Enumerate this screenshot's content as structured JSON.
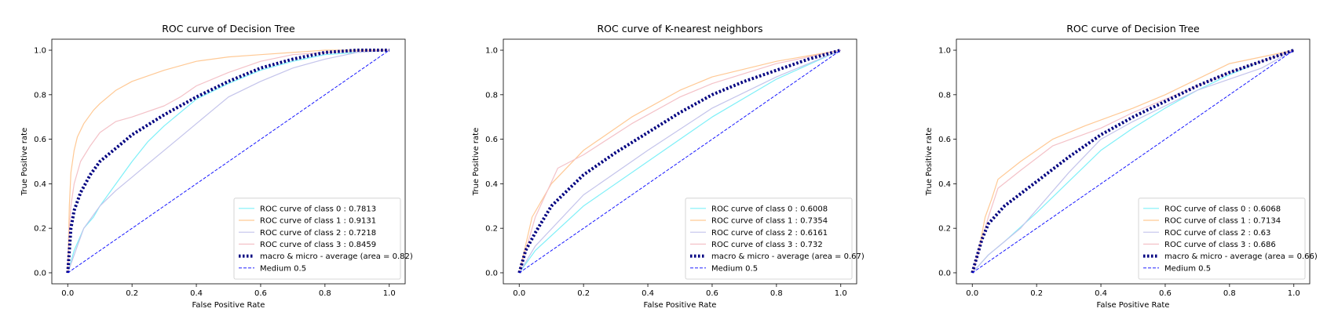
{
  "chart_data": [
    {
      "type": "line",
      "title": "ROC curve of Decision Tree",
      "xlabel": "False Positive Rate",
      "ylabel": "True Positive rate",
      "xlim": [
        0,
        1
      ],
      "ylim": [
        0,
        1
      ],
      "xticks": [
        "0.0",
        "0.2",
        "0.4",
        "0.6",
        "0.8",
        "1.0"
      ],
      "yticks": [
        "0.0",
        "0.2",
        "0.4",
        "0.6",
        "0.8",
        "1.0"
      ],
      "legend_position": "lower-right",
      "series": [
        {
          "name": "ROC curve of class 0 : 0.7813",
          "color": "#7ff0f8",
          "style": "solid",
          "points": [
            [
              0,
              0
            ],
            [
              0.02,
              0.1
            ],
            [
              0.05,
              0.2
            ],
            [
              0.08,
              0.25
            ],
            [
              0.1,
              0.3
            ],
            [
              0.15,
              0.4
            ],
            [
              0.2,
              0.5
            ],
            [
              0.25,
              0.59
            ],
            [
              0.3,
              0.66
            ],
            [
              0.35,
              0.72
            ],
            [
              0.4,
              0.78
            ],
            [
              0.5,
              0.85
            ],
            [
              0.6,
              0.91
            ],
            [
              0.7,
              0.95
            ],
            [
              0.8,
              0.98
            ],
            [
              0.9,
              0.99
            ],
            [
              1,
              1
            ]
          ]
        },
        {
          "name": "ROC curve of class 1 : 0.9131",
          "color": "#ffc995",
          "style": "solid",
          "points": [
            [
              0,
              0
            ],
            [
              0.005,
              0.3
            ],
            [
              0.01,
              0.45
            ],
            [
              0.02,
              0.55
            ],
            [
              0.03,
              0.61
            ],
            [
              0.05,
              0.67
            ],
            [
              0.08,
              0.73
            ],
            [
              0.1,
              0.76
            ],
            [
              0.15,
              0.82
            ],
            [
              0.2,
              0.86
            ],
            [
              0.3,
              0.91
            ],
            [
              0.4,
              0.95
            ],
            [
              0.5,
              0.97
            ],
            [
              0.6,
              0.98
            ],
            [
              0.7,
              0.99
            ],
            [
              0.8,
              1.0
            ],
            [
              1,
              1
            ]
          ]
        },
        {
          "name": "ROC curve of class 2 : 0.7218",
          "color": "#c4c4eb",
          "style": "solid",
          "points": [
            [
              0,
              0
            ],
            [
              0.03,
              0.12
            ],
            [
              0.05,
              0.2
            ],
            [
              0.1,
              0.3
            ],
            [
              0.15,
              0.37
            ],
            [
              0.2,
              0.43
            ],
            [
              0.25,
              0.49
            ],
            [
              0.3,
              0.55
            ],
            [
              0.35,
              0.61
            ],
            [
              0.4,
              0.67
            ],
            [
              0.45,
              0.73
            ],
            [
              0.5,
              0.79
            ],
            [
              0.6,
              0.86
            ],
            [
              0.7,
              0.92
            ],
            [
              0.8,
              0.96
            ],
            [
              0.9,
              0.99
            ],
            [
              1,
              1
            ]
          ]
        },
        {
          "name": "ROC curve of class 3 : 0.8459",
          "color": "#f4c2c8",
          "style": "solid",
          "points": [
            [
              0,
              0
            ],
            [
              0.005,
              0.2
            ],
            [
              0.01,
              0.3
            ],
            [
              0.02,
              0.4
            ],
            [
              0.04,
              0.5
            ],
            [
              0.07,
              0.57
            ],
            [
              0.1,
              0.63
            ],
            [
              0.15,
              0.68
            ],
            [
              0.2,
              0.7
            ],
            [
              0.3,
              0.75
            ],
            [
              0.35,
              0.79
            ],
            [
              0.4,
              0.84
            ],
            [
              0.5,
              0.9
            ],
            [
              0.6,
              0.95
            ],
            [
              0.7,
              0.98
            ],
            [
              0.8,
              0.99
            ],
            [
              1,
              1
            ]
          ]
        },
        {
          "name": "macro & micro - average (area = 0.82)",
          "color": "#000080",
          "style": "dotted",
          "points": [
            [
              0,
              0
            ],
            [
              0.005,
              0.1
            ],
            [
              0.01,
              0.2
            ],
            [
              0.02,
              0.28
            ],
            [
              0.04,
              0.36
            ],
            [
              0.07,
              0.44
            ],
            [
              0.1,
              0.5
            ],
            [
              0.15,
              0.56
            ],
            [
              0.2,
              0.62
            ],
            [
              0.3,
              0.71
            ],
            [
              0.4,
              0.79
            ],
            [
              0.5,
              0.86
            ],
            [
              0.6,
              0.92
            ],
            [
              0.7,
              0.96
            ],
            [
              0.8,
              0.99
            ],
            [
              0.9,
              1.0
            ],
            [
              1,
              1
            ]
          ]
        },
        {
          "name": "Medium 0.5",
          "color": "#0000ff",
          "style": "dashed",
          "points": [
            [
              0,
              0
            ],
            [
              1,
              1
            ]
          ]
        }
      ]
    },
    {
      "type": "line",
      "title": "ROC curve of K-nearest neighbors",
      "xlabel": "False Positive Rate",
      "ylabel": "True Positive rate",
      "xlim": [
        0,
        1
      ],
      "ylim": [
        0,
        1
      ],
      "xticks": [
        "0.0",
        "0.2",
        "0.4",
        "0.6",
        "0.8",
        "1.0"
      ],
      "yticks": [
        "0.0",
        "0.2",
        "0.4",
        "0.6",
        "0.8",
        "1.0"
      ],
      "legend_position": "lower-right",
      "series": [
        {
          "name": "ROC curve of class 0 : 0.6008",
          "color": "#7ff0f8",
          "style": "solid",
          "points": [
            [
              0,
              0
            ],
            [
              0.05,
              0.1
            ],
            [
              0.2,
              0.3
            ],
            [
              0.4,
              0.5
            ],
            [
              0.6,
              0.7
            ],
            [
              0.8,
              0.87
            ],
            [
              1,
              1
            ]
          ]
        },
        {
          "name": "ROC curve of class 1 : 0.7354",
          "color": "#ffc995",
          "style": "solid",
          "points": [
            [
              0,
              0
            ],
            [
              0.04,
              0.25
            ],
            [
              0.1,
              0.4
            ],
            [
              0.2,
              0.55
            ],
            [
              0.35,
              0.7
            ],
            [
              0.5,
              0.82
            ],
            [
              0.6,
              0.88
            ],
            [
              0.8,
              0.95
            ],
            [
              1,
              1
            ]
          ]
        },
        {
          "name": "ROC curve of class 2 : 0.6161",
          "color": "#c4c4eb",
          "style": "solid",
          "points": [
            [
              0,
              0
            ],
            [
              0.05,
              0.12
            ],
            [
              0.2,
              0.35
            ],
            [
              0.4,
              0.55
            ],
            [
              0.6,
              0.74
            ],
            [
              0.8,
              0.88
            ],
            [
              1,
              1
            ]
          ]
        },
        {
          "name": "ROC curve of class 3 : 0.732",
          "color": "#f4c2c8",
          "style": "solid",
          "points": [
            [
              0,
              0
            ],
            [
              0.05,
              0.25
            ],
            [
              0.12,
              0.47
            ],
            [
              0.2,
              0.53
            ],
            [
              0.35,
              0.67
            ],
            [
              0.5,
              0.79
            ],
            [
              0.6,
              0.85
            ],
            [
              0.8,
              0.94
            ],
            [
              1,
              1
            ]
          ]
        },
        {
          "name": "macro & micro - average (area = 0.67)",
          "color": "#000080",
          "style": "dotted",
          "points": [
            [
              0,
              0
            ],
            [
              0.02,
              0.1
            ],
            [
              0.05,
              0.18
            ],
            [
              0.1,
              0.3
            ],
            [
              0.2,
              0.44
            ],
            [
              0.3,
              0.54
            ],
            [
              0.4,
              0.63
            ],
            [
              0.5,
              0.72
            ],
            [
              0.6,
              0.8
            ],
            [
              0.7,
              0.86
            ],
            [
              0.8,
              0.91
            ],
            [
              0.9,
              0.96
            ],
            [
              1,
              1
            ]
          ]
        },
        {
          "name": "Medium 0.5",
          "color": "#0000ff",
          "style": "dashed",
          "points": [
            [
              0,
              0
            ],
            [
              1,
              1
            ]
          ]
        }
      ]
    },
    {
      "type": "line",
      "title": "ROC curve of Decision Tree",
      "xlabel": "False Positive Rate",
      "ylabel": "True Positive rate",
      "xlim": [
        0,
        1
      ],
      "ylim": [
        0,
        1
      ],
      "xticks": [
        "0.0",
        "0.2",
        "0.4",
        "0.6",
        "0.8",
        "1.0"
      ],
      "yticks": [
        "0.0",
        "0.2",
        "0.4",
        "0.6",
        "0.8",
        "1.0"
      ],
      "legend_position": "lower-right",
      "series": [
        {
          "name": "ROC curve of class 0 : 0.6068",
          "color": "#7ff0f8",
          "style": "solid",
          "points": [
            [
              0,
              0
            ],
            [
              0.05,
              0.08
            ],
            [
              0.1,
              0.14
            ],
            [
              0.2,
              0.27
            ],
            [
              0.3,
              0.41
            ],
            [
              0.4,
              0.55
            ],
            [
              0.5,
              0.65
            ],
            [
              0.6,
              0.74
            ],
            [
              0.7,
              0.82
            ],
            [
              0.8,
              0.89
            ],
            [
              0.9,
              0.95
            ],
            [
              1,
              1
            ]
          ]
        },
        {
          "name": "ROC curve of class 1 : 0.7134",
          "color": "#ffc995",
          "style": "solid",
          "points": [
            [
              0,
              0
            ],
            [
              0.02,
              0.1
            ],
            [
              0.04,
              0.25
            ],
            [
              0.06,
              0.33
            ],
            [
              0.08,
              0.42
            ],
            [
              0.15,
              0.5
            ],
            [
              0.25,
              0.6
            ],
            [
              0.35,
              0.66
            ],
            [
              0.5,
              0.74
            ],
            [
              0.6,
              0.8
            ],
            [
              0.7,
              0.87
            ],
            [
              0.8,
              0.94
            ],
            [
              0.9,
              0.97
            ],
            [
              1,
              1
            ]
          ]
        },
        {
          "name": "ROC curve of class 2 : 0.63",
          "color": "#c4c4eb",
          "style": "solid",
          "points": [
            [
              0,
              0
            ],
            [
              0.05,
              0.08
            ],
            [
              0.15,
              0.2
            ],
            [
              0.3,
              0.45
            ],
            [
              0.4,
              0.6
            ],
            [
              0.5,
              0.68
            ],
            [
              0.6,
              0.75
            ],
            [
              0.7,
              0.82
            ],
            [
              0.8,
              0.87
            ],
            [
              0.9,
              0.92
            ],
            [
              1,
              1
            ]
          ]
        },
        {
          "name": "ROC curve of class 3 : 0.686",
          "color": "#f4c2c8",
          "style": "solid",
          "points": [
            [
              0,
              0
            ],
            [
              0.02,
              0.1
            ],
            [
              0.05,
              0.25
            ],
            [
              0.08,
              0.38
            ],
            [
              0.15,
              0.46
            ],
            [
              0.25,
              0.57
            ],
            [
              0.4,
              0.65
            ],
            [
              0.5,
              0.72
            ],
            [
              0.6,
              0.78
            ],
            [
              0.7,
              0.84
            ],
            [
              0.8,
              0.9
            ],
            [
              0.9,
              0.95
            ],
            [
              1,
              1
            ]
          ]
        },
        {
          "name": "macro & micro - average (area = 0.66)",
          "color": "#000080",
          "style": "dotted",
          "points": [
            [
              0,
              0
            ],
            [
              0.01,
              0.05
            ],
            [
              0.03,
              0.15
            ],
            [
              0.05,
              0.22
            ],
            [
              0.1,
              0.3
            ],
            [
              0.2,
              0.41
            ],
            [
              0.3,
              0.52
            ],
            [
              0.4,
              0.62
            ],
            [
              0.5,
              0.7
            ],
            [
              0.6,
              0.77
            ],
            [
              0.7,
              0.84
            ],
            [
              0.8,
              0.9
            ],
            [
              0.9,
              0.95
            ],
            [
              1,
              1
            ]
          ]
        },
        {
          "name": "Medium 0.5",
          "color": "#0000ff",
          "style": "dashed",
          "points": [
            [
              0,
              0
            ],
            [
              1,
              1
            ]
          ]
        }
      ]
    }
  ]
}
